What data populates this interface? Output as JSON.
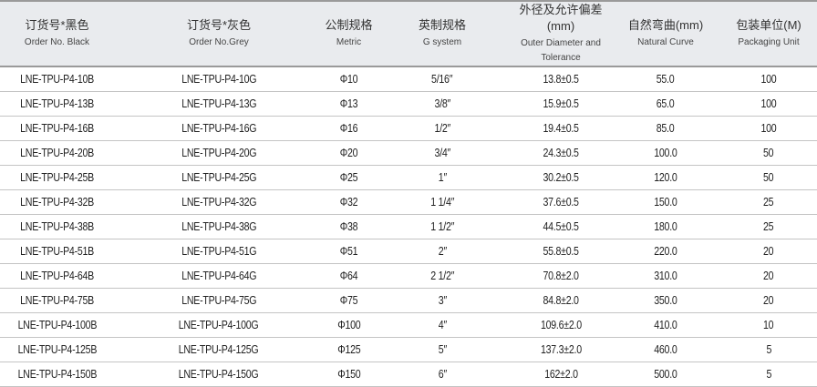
{
  "headers": [
    {
      "zh": "订货号*黑色",
      "en": "Order No. Black"
    },
    {
      "zh": "订货号*灰色",
      "en": "Order No.Grey"
    },
    {
      "zh": "公制规格",
      "en": "Metric"
    },
    {
      "zh": "英制规格",
      "en": "G system"
    },
    {
      "zh": "外径及允许偏差(mm)",
      "en": "Outer Diameter and Tolerance"
    },
    {
      "zh": "自然弯曲(mm)",
      "en": "Natural Curve"
    },
    {
      "zh": "包装单位(M)",
      "en": "Packaging Unit"
    }
  ],
  "rows": [
    [
      "LNE-TPU-P4-10B",
      "LNE-TPU-P4-10G",
      "Φ10",
      "5/16″",
      "13.8±0.5",
      "55.0",
      "100"
    ],
    [
      "LNE-TPU-P4-13B",
      "LNE-TPU-P4-13G",
      "Φ13",
      "3/8″",
      "15.9±0.5",
      "65.0",
      "100"
    ],
    [
      "LNE-TPU-P4-16B",
      "LNE-TPU-P4-16G",
      "Φ16",
      "1/2″",
      "19.4±0.5",
      "85.0",
      "100"
    ],
    [
      "LNE-TPU-P4-20B",
      "LNE-TPU-P4-20G",
      "Φ20",
      "3/4″",
      "24.3±0.5",
      "100.0",
      "50"
    ],
    [
      "LNE-TPU-P4-25B",
      "LNE-TPU-P4-25G",
      "Φ25",
      "1″",
      "30.2±0.5",
      "120.0",
      "50"
    ],
    [
      "LNE-TPU-P4-32B",
      "LNE-TPU-P4-32G",
      "Φ32",
      "1 1/4″",
      "37.6±0.5",
      "150.0",
      "25"
    ],
    [
      "LNE-TPU-P4-38B",
      "LNE-TPU-P4-38G",
      "Φ38",
      "1 1/2″",
      "44.5±0.5",
      "180.0",
      "25"
    ],
    [
      "LNE-TPU-P4-51B",
      "LNE-TPU-P4-51G",
      "Φ51",
      "2″",
      "55.8±0.5",
      "220.0",
      "20"
    ],
    [
      "LNE-TPU-P4-64B",
      "LNE-TPU-P4-64G",
      "Φ64",
      "2 1/2″",
      "70.8±2.0",
      "310.0",
      "20"
    ],
    [
      "LNE-TPU-P4-75B",
      "LNE-TPU-P4-75G",
      "Φ75",
      "3″",
      "84.8±2.0",
      "350.0",
      "20"
    ],
    [
      "LNE-TPU-P4-100B",
      "LNE-TPU-P4-100G",
      "Φ100",
      "4″",
      "109.6±2.0",
      "410.0",
      "10"
    ],
    [
      "LNE-TPU-P4-125B",
      "LNE-TPU-P4-125G",
      "Φ125",
      "5″",
      "137.3±2.0",
      "460.0",
      "5"
    ],
    [
      "LNE-TPU-P4-150B",
      "LNE-TPU-P4-150G",
      "Φ150",
      "6″",
      "162±2.0",
      "500.0",
      "5"
    ]
  ]
}
